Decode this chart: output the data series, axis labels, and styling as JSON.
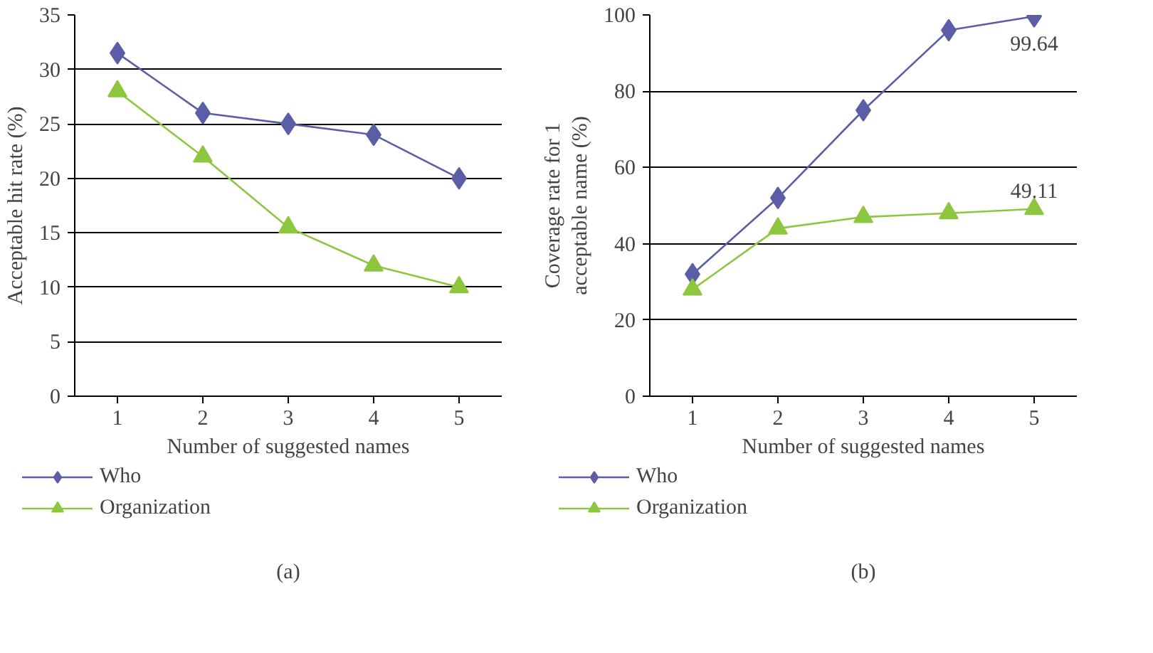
{
  "chart_data": [
    {
      "type": "line",
      "title": "(a)",
      "xlabel": "Number of suggested names",
      "ylabel": "Acceptable hit rate (%)",
      "x": [
        1,
        2,
        3,
        4,
        5
      ],
      "xlim": [
        0.5,
        5.5
      ],
      "xticks": [
        1,
        2,
        3,
        4,
        5
      ],
      "ylim": [
        0,
        35
      ],
      "yticks": [
        0,
        5,
        10,
        15,
        20,
        25,
        30,
        35
      ],
      "grid": "y",
      "legend": "bottom",
      "series": [
        {
          "name": "Who",
          "color": "#5b5ea6",
          "marker": "diamond",
          "values": [
            31.5,
            26,
            25,
            24,
            20
          ]
        },
        {
          "name": "Organization",
          "color": "#8dc63f",
          "marker": "triangle",
          "values": [
            28,
            22,
            15.5,
            12,
            10
          ]
        }
      ]
    },
    {
      "type": "line",
      "title": "(b)",
      "xlabel": "Number of suggested names",
      "ylabel": "Coverage rate for 1\nacceptable name (%)",
      "x": [
        1,
        2,
        3,
        4,
        5
      ],
      "xlim": [
        0.5,
        5.5
      ],
      "xticks": [
        1,
        2,
        3,
        4,
        5
      ],
      "ylim": [
        0,
        100
      ],
      "yticks": [
        0,
        20,
        40,
        60,
        80,
        100
      ],
      "grid": "y",
      "legend": "bottom",
      "annotations": [
        {
          "text": "99.64",
          "x": 5,
          "y": 99.64
        },
        {
          "text": "49.11",
          "x": 5,
          "y": 49.11
        }
      ],
      "series": [
        {
          "name": "Who",
          "color": "#5b5ea6",
          "marker": "diamond",
          "values": [
            32,
            52,
            75,
            96,
            99.64
          ]
        },
        {
          "name": "Organization",
          "color": "#8dc63f",
          "marker": "triangle",
          "values": [
            28,
            44,
            47,
            48,
            49.11
          ]
        }
      ]
    }
  ]
}
